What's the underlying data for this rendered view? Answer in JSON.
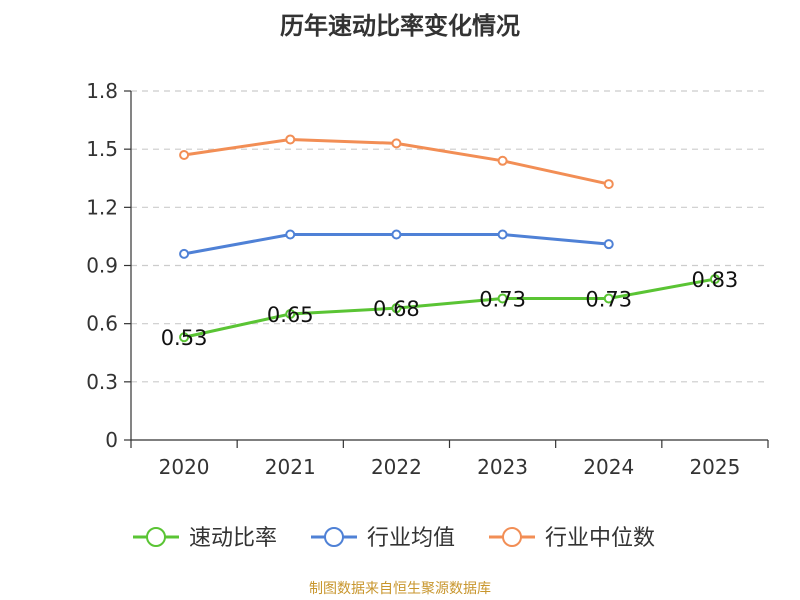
{
  "chart_data": {
    "type": "line",
    "title": "历年速动比率变化情况",
    "categories": [
      "2020",
      "2021",
      "2022",
      "2023",
      "2024",
      "2025"
    ],
    "ylim": [
      0,
      1.8
    ],
    "yticks": [
      "0",
      "0.3",
      "0.6",
      "0.9",
      "1.2",
      "1.5",
      "1.8"
    ],
    "ytick_values": [
      0,
      0.3,
      0.6,
      0.9,
      1.2,
      1.5,
      1.8
    ],
    "grid": true,
    "legend_position": "bottom",
    "series": [
      {
        "name": "速动比率",
        "color": "#5ac434",
        "values": [
          0.53,
          0.65,
          0.68,
          0.73,
          0.73,
          0.83
        ],
        "labels": [
          "0.53",
          "0.65",
          "0.68",
          "0.73",
          "0.73",
          "0.83"
        ]
      },
      {
        "name": "行业均值",
        "color": "#4f81d6",
        "values": [
          0.96,
          1.06,
          1.06,
          1.06,
          1.01,
          null
        ]
      },
      {
        "name": "行业中位数",
        "color": "#f28e55",
        "values": [
          1.47,
          1.55,
          1.53,
          1.44,
          1.32,
          null
        ]
      }
    ]
  },
  "footer": "制图数据来自恒生聚源数据库"
}
